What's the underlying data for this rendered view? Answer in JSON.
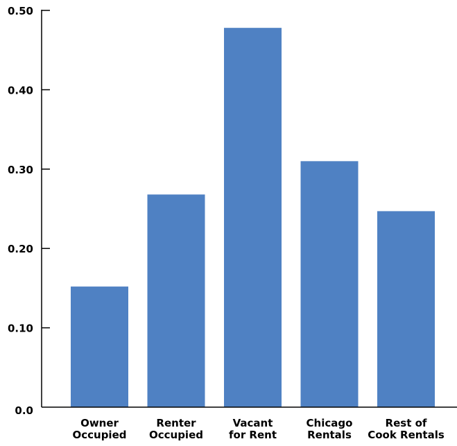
{
  "chart_data": {
    "type": "bar",
    "title": "",
    "xlabel": "",
    "ylabel": "",
    "categories": [
      [
        "Owner",
        "Occupied"
      ],
      [
        "Renter",
        "Occupied"
      ],
      [
        "Vacant",
        "for Rent"
      ],
      [
        "Chicago",
        "Rentals"
      ],
      [
        "Rest of",
        "Cook Rentals"
      ]
    ],
    "values": [
      0.152,
      0.268,
      0.478,
      0.31,
      0.247
    ],
    "ylim": [
      0,
      0.5
    ],
    "yticks": [
      0.0,
      0.1,
      0.2,
      0.3,
      0.4,
      0.5
    ],
    "ytick_labels": [
      "0.0",
      "0.10",
      "0.20",
      "0.30",
      "0.40",
      "0.50"
    ],
    "grid": false,
    "legend": "none",
    "colors": {
      "bar": "#4f81c3",
      "axis": "#000000"
    }
  }
}
